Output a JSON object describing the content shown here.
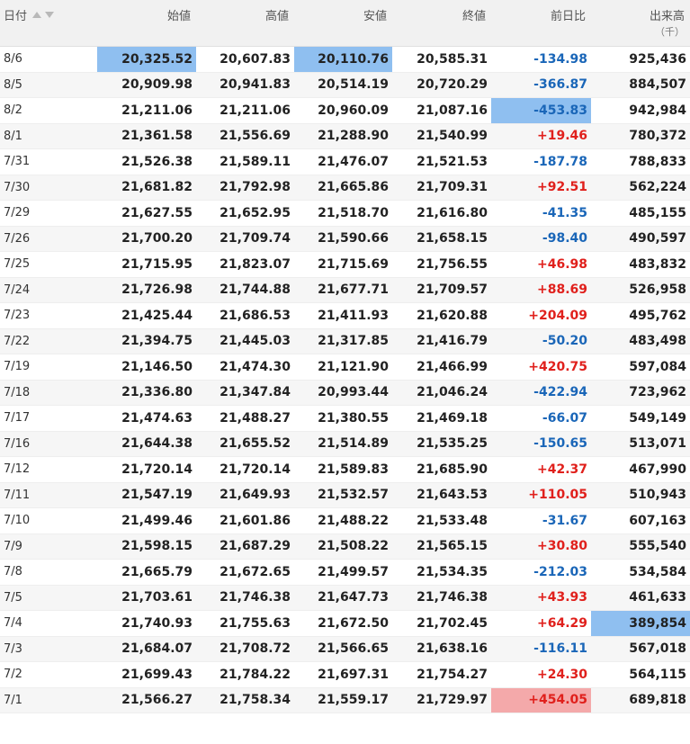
{
  "headers": {
    "date": "日付",
    "open": "始値",
    "high": "高値",
    "low": "安値",
    "close": "終値",
    "diff": "前日比",
    "volume": "出来高",
    "volume_unit": "（千）"
  },
  "rows": [
    {
      "date": "8/6",
      "open": "20,325.52",
      "high": "20,607.83",
      "low": "20,110.76",
      "close": "20,585.31",
      "diff": "-134.98",
      "volume": "925,436"
    },
    {
      "date": "8/5",
      "open": "20,909.98",
      "high": "20,941.83",
      "low": "20,514.19",
      "close": "20,720.29",
      "diff": "-366.87",
      "volume": "884,507"
    },
    {
      "date": "8/2",
      "open": "21,211.06",
      "high": "21,211.06",
      "low": "20,960.09",
      "close": "21,087.16",
      "diff": "-453.83",
      "volume": "942,984"
    },
    {
      "date": "8/1",
      "open": "21,361.58",
      "high": "21,556.69",
      "low": "21,288.90",
      "close": "21,540.99",
      "diff": "+19.46",
      "volume": "780,372"
    },
    {
      "date": "7/31",
      "open": "21,526.38",
      "high": "21,589.11",
      "low": "21,476.07",
      "close": "21,521.53",
      "diff": "-187.78",
      "volume": "788,833"
    },
    {
      "date": "7/30",
      "open": "21,681.82",
      "high": "21,792.98",
      "low": "21,665.86",
      "close": "21,709.31",
      "diff": "+92.51",
      "volume": "562,224"
    },
    {
      "date": "7/29",
      "open": "21,627.55",
      "high": "21,652.95",
      "low": "21,518.70",
      "close": "21,616.80",
      "diff": "-41.35",
      "volume": "485,155"
    },
    {
      "date": "7/26",
      "open": "21,700.20",
      "high": "21,709.74",
      "low": "21,590.66",
      "close": "21,658.15",
      "diff": "-98.40",
      "volume": "490,597"
    },
    {
      "date": "7/25",
      "open": "21,715.95",
      "high": "21,823.07",
      "low": "21,715.69",
      "close": "21,756.55",
      "diff": "+46.98",
      "volume": "483,832"
    },
    {
      "date": "7/24",
      "open": "21,726.98",
      "high": "21,744.88",
      "low": "21,677.71",
      "close": "21,709.57",
      "diff": "+88.69",
      "volume": "526,958"
    },
    {
      "date": "7/23",
      "open": "21,425.44",
      "high": "21,686.53",
      "low": "21,411.93",
      "close": "21,620.88",
      "diff": "+204.09",
      "volume": "495,762"
    },
    {
      "date": "7/22",
      "open": "21,394.75",
      "high": "21,445.03",
      "low": "21,317.85",
      "close": "21,416.79",
      "diff": "-50.20",
      "volume": "483,498"
    },
    {
      "date": "7/19",
      "open": "21,146.50",
      "high": "21,474.30",
      "low": "21,121.90",
      "close": "21,466.99",
      "diff": "+420.75",
      "volume": "597,084"
    },
    {
      "date": "7/18",
      "open": "21,336.80",
      "high": "21,347.84",
      "low": "20,993.44",
      "close": "21,046.24",
      "diff": "-422.94",
      "volume": "723,962"
    },
    {
      "date": "7/17",
      "open": "21,474.63",
      "high": "21,488.27",
      "low": "21,380.55",
      "close": "21,469.18",
      "diff": "-66.07",
      "volume": "549,149"
    },
    {
      "date": "7/16",
      "open": "21,644.38",
      "high": "21,655.52",
      "low": "21,514.89",
      "close": "21,535.25",
      "diff": "-150.65",
      "volume": "513,071"
    },
    {
      "date": "7/12",
      "open": "21,720.14",
      "high": "21,720.14",
      "low": "21,589.83",
      "close": "21,685.90",
      "diff": "+42.37",
      "volume": "467,990"
    },
    {
      "date": "7/11",
      "open": "21,547.19",
      "high": "21,649.93",
      "low": "21,532.57",
      "close": "21,643.53",
      "diff": "+110.05",
      "volume": "510,943"
    },
    {
      "date": "7/10",
      "open": "21,499.46",
      "high": "21,601.86",
      "low": "21,488.22",
      "close": "21,533.48",
      "diff": "-31.67",
      "volume": "607,163"
    },
    {
      "date": "7/9",
      "open": "21,598.15",
      "high": "21,687.29",
      "low": "21,508.22",
      "close": "21,565.15",
      "diff": "+30.80",
      "volume": "555,540"
    },
    {
      "date": "7/8",
      "open": "21,665.79",
      "high": "21,672.65",
      "low": "21,499.57",
      "close": "21,534.35",
      "diff": "-212.03",
      "volume": "534,584"
    },
    {
      "date": "7/5",
      "open": "21,703.61",
      "high": "21,746.38",
      "low": "21,647.73",
      "close": "21,746.38",
      "diff": "+43.93",
      "volume": "461,633"
    },
    {
      "date": "7/4",
      "open": "21,740.93",
      "high": "21,755.63",
      "low": "21,672.50",
      "close": "21,702.45",
      "diff": "+64.29",
      "volume": "389,854"
    },
    {
      "date": "7/3",
      "open": "21,684.07",
      "high": "21,708.72",
      "low": "21,566.65",
      "close": "21,638.16",
      "diff": "-116.11",
      "volume": "567,018"
    },
    {
      "date": "7/2",
      "open": "21,699.43",
      "high": "21,784.22",
      "low": "21,697.31",
      "close": "21,754.27",
      "diff": "+24.30",
      "volume": "564,115"
    },
    {
      "date": "7/1",
      "open": "21,566.27",
      "high": "21,758.34",
      "low": "21,559.17",
      "close": "21,729.97",
      "diff": "+454.05",
      "volume": "689,818"
    }
  ],
  "highlights": [
    {
      "row": 0,
      "col": "open",
      "color": "blue"
    },
    {
      "row": 0,
      "col": "low",
      "color": "blue"
    },
    {
      "row": 2,
      "col": "diff",
      "color": "blue"
    },
    {
      "row": 22,
      "col": "volume",
      "color": "blue"
    },
    {
      "row": 25,
      "col": "diff",
      "color": "red"
    }
  ],
  "colors": {
    "negative": "#1a66b8",
    "positive": "#e0201c",
    "highlight_blue": "#8fbff0",
    "highlight_red": "#f4a9aa",
    "header_bg": "#f1f1f1"
  },
  "icons": {
    "sort_asc": "sort-up-icon",
    "sort_desc": "sort-down-icon"
  }
}
